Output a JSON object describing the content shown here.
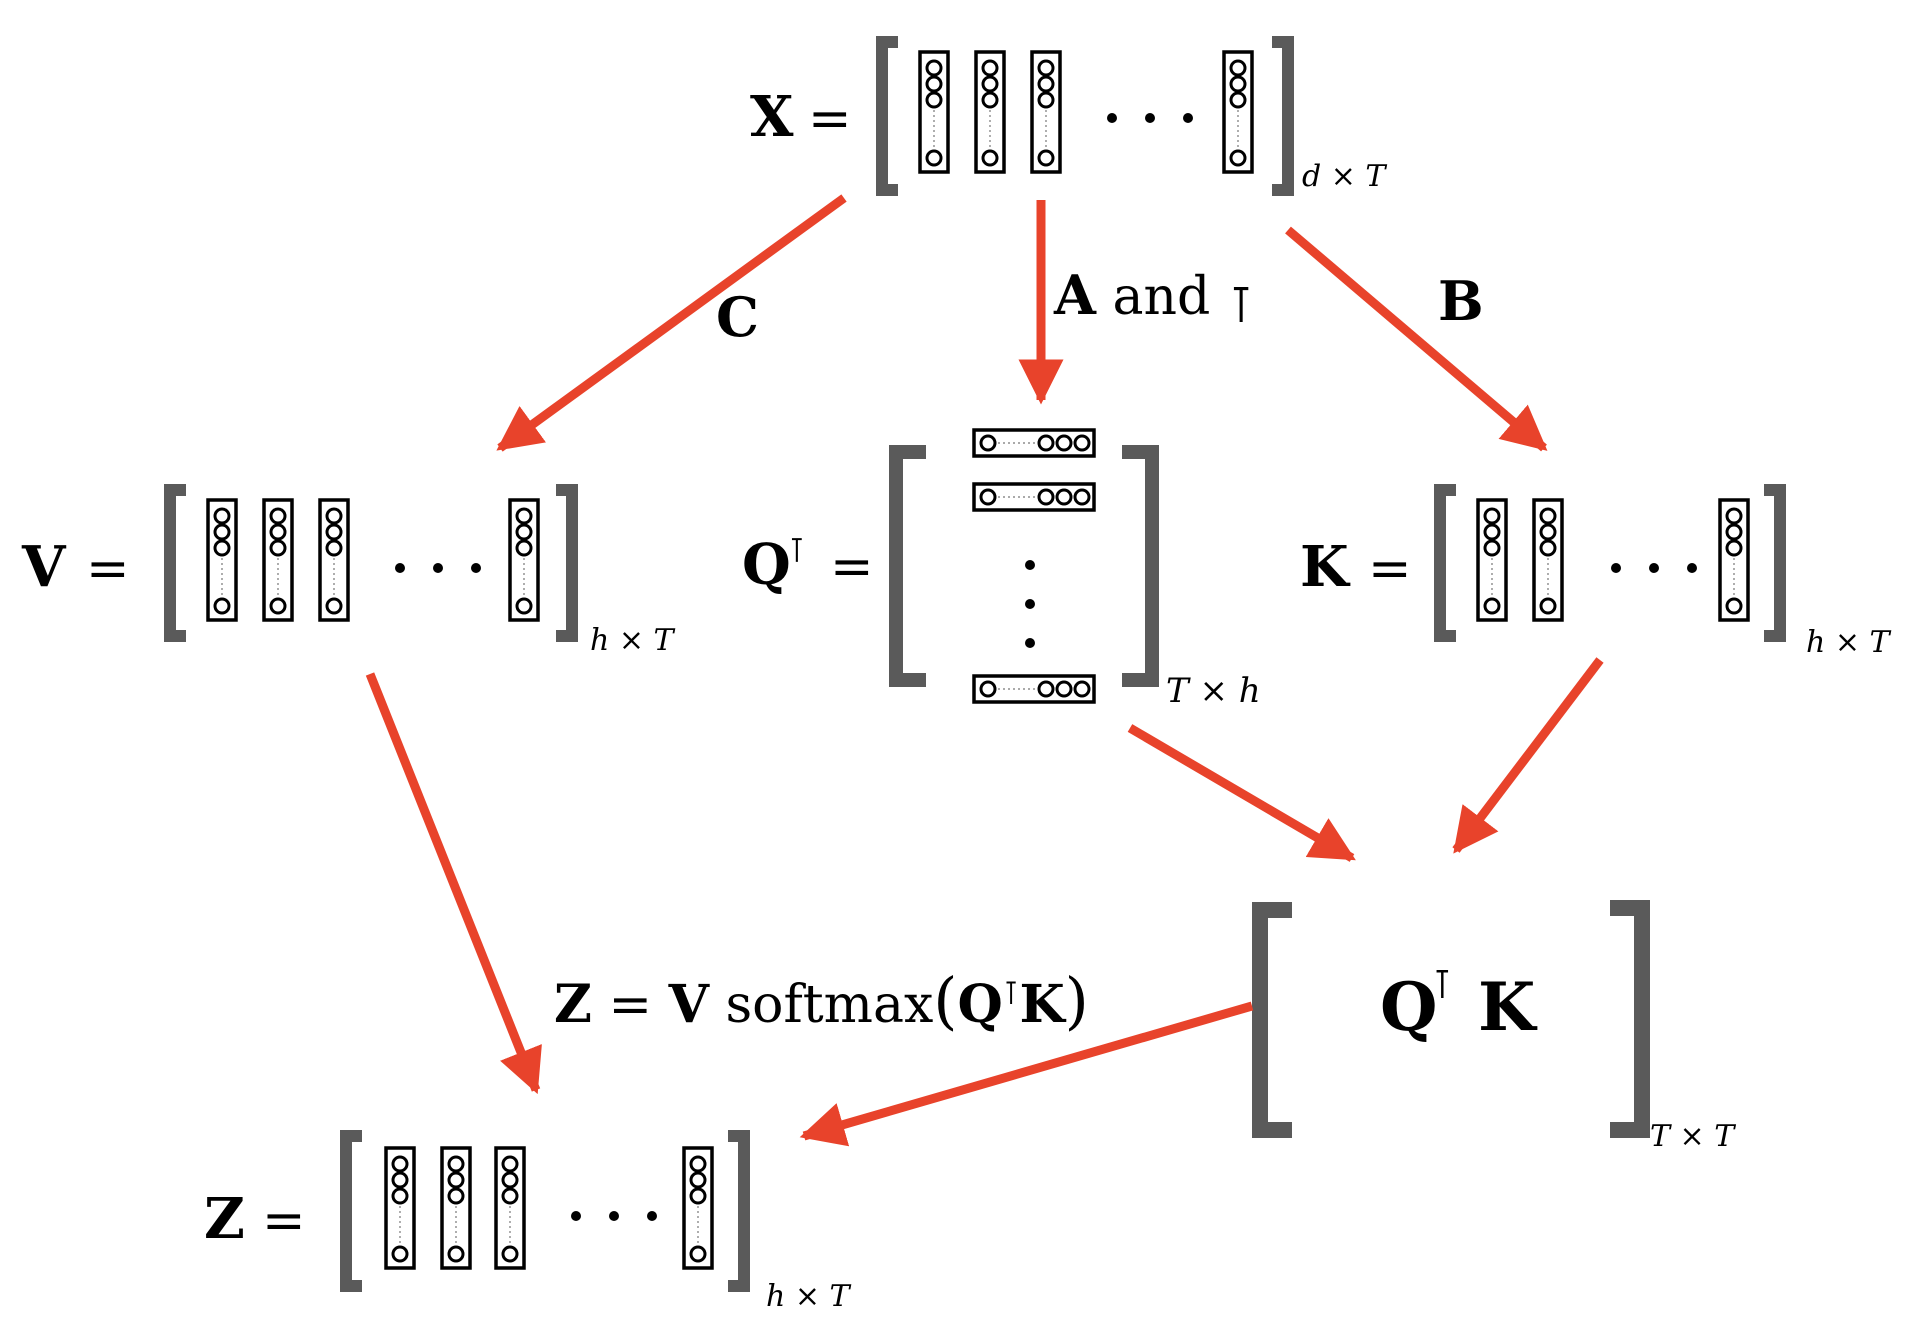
{
  "x_matrix": {
    "symbol": "X",
    "equals": "=",
    "dims": "d × T"
  },
  "v_matrix": {
    "symbol": "V",
    "equals": "=",
    "dims": "h × T"
  },
  "k_matrix": {
    "symbol": "K",
    "equals": "=",
    "dims": "h × T"
  },
  "qt_matrix": {
    "symbol": "Q",
    "transpose": "⊺",
    "equals": "=",
    "dims": "T × h"
  },
  "qtk_matrix": {
    "symbol_q": "Q",
    "transpose": "⊺",
    "symbol_k": "K",
    "dims": "T × T"
  },
  "z_matrix": {
    "symbol": "Z",
    "equals": "=",
    "dims": "h × T"
  },
  "edge_labels": {
    "c": "C",
    "a": "A",
    "a_and": " and ",
    "a_t": "⊺",
    "b": "B"
  },
  "formula": {
    "z": "Z",
    "eq": " = ",
    "v": "V",
    "softmax": " softmax",
    "lparen": "(",
    "q": "Q",
    "t": "⊺",
    "k": "K",
    "rparen": ")"
  },
  "colors": {
    "arrow": "#e8432b",
    "bracket": "#5a5a5a",
    "ink": "#000000"
  }
}
